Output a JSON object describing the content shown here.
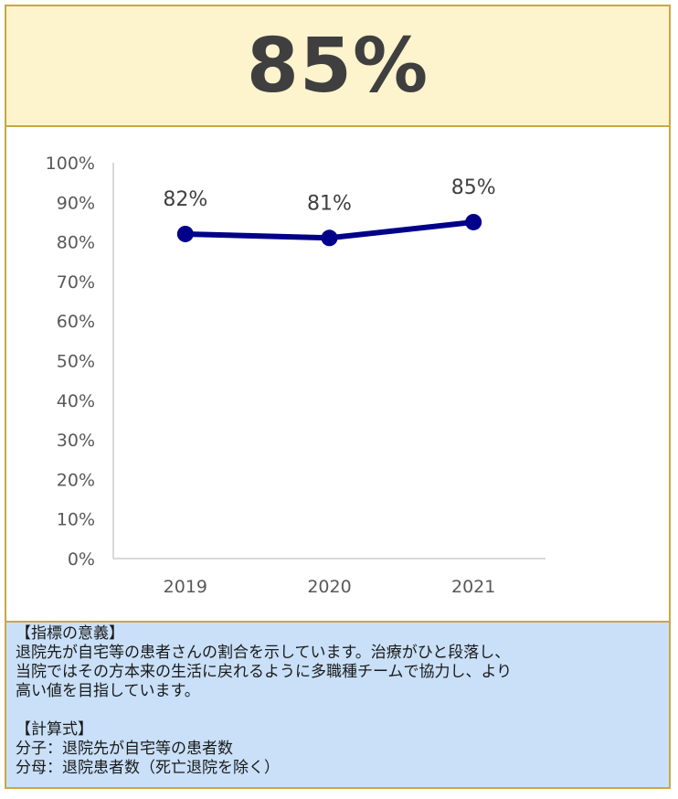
{
  "header": {
    "value": "85%"
  },
  "chart_data": {
    "type": "line",
    "categories": [
      "2019",
      "2020",
      "2021"
    ],
    "series": [
      {
        "values": [
          82,
          81,
          85
        ],
        "color": "#00008b",
        "labels": [
          "82%",
          "81%",
          "85%"
        ]
      }
    ],
    "ylim": [
      0,
      100
    ],
    "yticks": [
      "0%",
      "10%",
      "20%",
      "30%",
      "40%",
      "50%",
      "60%",
      "70%",
      "80%",
      "90%",
      "100%"
    ],
    "grid": false,
    "legend": "none"
  },
  "footer": {
    "meaning_heading": "【指標の意義】",
    "meaning_lines": [
      "退院先が自宅等の患者さんの割合を示しています。治療がひと段落し、",
      "当院ではその方本来の生活に戻れるように多職種チームで協力し、より",
      "高い値を目指しています。"
    ],
    "formula_heading": "【計算式】",
    "numerator": "分子：退院先が自宅等の患者数",
    "denominator": "分母：退院患者数（死亡退院を除く）"
  }
}
